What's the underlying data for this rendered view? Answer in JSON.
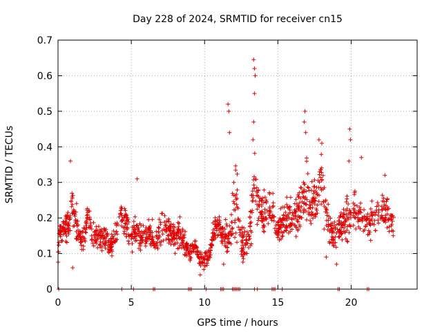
{
  "chart_data": {
    "type": "scatter",
    "title": "Day 228 of 2024, SRMTID for receiver cn15",
    "xlabel": "GPS time / hours",
    "ylabel": "SRMTID / TECUs",
    "xlim": [
      0,
      24.5
    ],
    "ylim": [
      0,
      0.7
    ],
    "xticks": [
      0,
      5,
      10,
      15,
      20
    ],
    "yticks": [
      0,
      0.1,
      0.2,
      0.3,
      0.4,
      0.5,
      0.6,
      0.7
    ],
    "grid": true,
    "marker": "plus",
    "color": "#e00000",
    "series": [
      {
        "name": "SRMTID",
        "profile_hours": [
          0.0,
          0.1,
          0.3,
          0.5,
          0.8,
          1.0,
          1.2,
          1.5,
          1.8,
          2.0,
          2.3,
          2.5,
          2.8,
          3.0,
          3.3,
          3.5,
          3.8,
          4.0,
          4.3,
          4.6,
          5.0,
          5.3,
          5.5,
          5.8,
          6.0,
          6.3,
          6.6,
          7.0,
          7.3,
          7.6,
          8.0,
          8.3,
          8.6,
          9.0,
          9.3,
          9.6,
          10.0,
          10.3,
          10.6,
          11.0,
          11.3,
          11.6,
          11.8,
          12.0,
          12.3,
          12.6,
          13.0,
          13.2,
          13.4,
          13.6,
          13.8,
          14.0,
          14.3,
          14.6,
          15.0,
          15.3,
          15.6,
          16.0,
          16.3,
          16.6,
          16.8,
          17.0,
          17.3,
          17.6,
          18.0,
          18.3,
          18.6,
          19.0,
          19.3,
          19.6,
          19.8,
          20.0,
          20.3,
          20.6,
          21.0,
          21.3,
          21.6,
          22.0,
          22.3,
          22.6,
          22.9
        ],
        "profile_center": [
          0.09,
          0.16,
          0.16,
          0.17,
          0.18,
          0.25,
          0.2,
          0.14,
          0.15,
          0.2,
          0.16,
          0.15,
          0.14,
          0.15,
          0.14,
          0.12,
          0.13,
          0.17,
          0.2,
          0.18,
          0.15,
          0.17,
          0.15,
          0.14,
          0.15,
          0.16,
          0.13,
          0.17,
          0.18,
          0.16,
          0.14,
          0.16,
          0.13,
          0.1,
          0.12,
          0.09,
          0.08,
          0.09,
          0.16,
          0.18,
          0.15,
          0.14,
          0.16,
          0.28,
          0.2,
          0.12,
          0.15,
          0.22,
          0.3,
          0.24,
          0.23,
          0.21,
          0.24,
          0.22,
          0.17,
          0.18,
          0.2,
          0.19,
          0.2,
          0.24,
          0.28,
          0.3,
          0.22,
          0.25,
          0.3,
          0.2,
          0.16,
          0.15,
          0.18,
          0.18,
          0.21,
          0.22,
          0.23,
          0.2,
          0.18,
          0.19,
          0.2,
          0.21,
          0.22,
          0.2,
          0.19
        ],
        "profile_spread": [
          0.04,
          0.03,
          0.04,
          0.05,
          0.08,
          0.09,
          0.07,
          0.05,
          0.05,
          0.06,
          0.06,
          0.05,
          0.05,
          0.05,
          0.05,
          0.04,
          0.05,
          0.06,
          0.06,
          0.06,
          0.06,
          0.07,
          0.06,
          0.05,
          0.05,
          0.06,
          0.05,
          0.06,
          0.06,
          0.06,
          0.05,
          0.06,
          0.05,
          0.04,
          0.04,
          0.04,
          0.03,
          0.03,
          0.05,
          0.05,
          0.05,
          0.07,
          0.08,
          0.17,
          0.11,
          0.06,
          0.06,
          0.1,
          0.2,
          0.1,
          0.09,
          0.08,
          0.07,
          0.07,
          0.05,
          0.06,
          0.08,
          0.08,
          0.08,
          0.11,
          0.14,
          0.12,
          0.09,
          0.1,
          0.11,
          0.09,
          0.07,
          0.06,
          0.07,
          0.07,
          0.11,
          0.09,
          0.08,
          0.07,
          0.06,
          0.07,
          0.07,
          0.08,
          0.07,
          0.07,
          0.06
        ],
        "point_count": 1500,
        "peaks": [
          {
            "x": 0.85,
            "y": 0.36
          },
          {
            "x": 5.4,
            "y": 0.31
          },
          {
            "x": 11.6,
            "y": 0.52
          },
          {
            "x": 11.65,
            "y": 0.5
          },
          {
            "x": 11.7,
            "y": 0.44
          },
          {
            "x": 13.35,
            "y": 0.645
          },
          {
            "x": 13.4,
            "y": 0.62
          },
          {
            "x": 13.45,
            "y": 0.6
          },
          {
            "x": 13.4,
            "y": 0.55
          },
          {
            "x": 13.35,
            "y": 0.47
          },
          {
            "x": 13.3,
            "y": 0.42
          },
          {
            "x": 16.85,
            "y": 0.5
          },
          {
            "x": 16.8,
            "y": 0.47
          },
          {
            "x": 16.9,
            "y": 0.44
          },
          {
            "x": 17.8,
            "y": 0.42
          },
          {
            "x": 18.0,
            "y": 0.41
          },
          {
            "x": 19.9,
            "y": 0.45
          },
          {
            "x": 19.95,
            "y": 0.42
          },
          {
            "x": 19.85,
            "y": 0.36
          },
          {
            "x": 20.7,
            "y": 0.37
          },
          {
            "x": 22.3,
            "y": 0.32
          },
          {
            "x": 1.0,
            "y": 0.06
          },
          {
            "x": 9.7,
            "y": 0.04
          },
          {
            "x": 11.3,
            "y": 0.07
          },
          {
            "x": 18.3,
            "y": 0.09
          },
          {
            "x": 19.0,
            "y": 0.07
          }
        ],
        "zero_points_x": [
          0.05,
          4.35,
          5.15,
          6.5,
          6.6,
          8.9,
          9.0,
          9.1,
          10.1,
          11.1,
          11.2,
          11.3,
          11.9,
          12.0,
          12.1,
          12.2,
          12.3,
          12.4,
          13.4,
          13.6,
          14.6,
          14.7,
          14.8,
          15.3,
          19.1,
          19.2,
          21.1,
          21.2
        ]
      }
    ]
  }
}
